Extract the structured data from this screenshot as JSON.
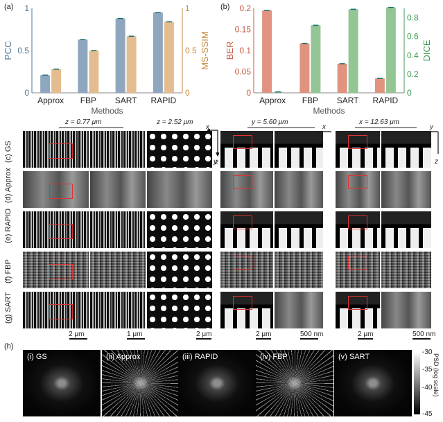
{
  "panels": {
    "a": "(a)",
    "b": "(b)",
    "c": "(c)",
    "d": "(d)",
    "e": "(e)",
    "f": "(f)",
    "g": "(g)",
    "h": "(h)"
  },
  "chart_data": [
    {
      "type": "bar",
      "categories": [
        "Approx",
        "FBP",
        "SART",
        "RAPID"
      ],
      "xlabel": "Methods",
      "ylabel": "PCC",
      "y2label": "MS-SSIM",
      "ylim": [
        0,
        1
      ],
      "y2lim": [
        0,
        1
      ],
      "yticks": [
        "0",
        "0.5",
        "1"
      ],
      "y2ticks": [
        "0",
        "0.5",
        "1"
      ],
      "series": [
        {
          "name": "PCC",
          "axis": "left",
          "color": "#8fa6bf",
          "values": [
            0.21,
            0.63,
            0.88,
            0.95
          ]
        },
        {
          "name": "MS-SSIM",
          "axis": "right",
          "color": "#e3bd8f",
          "values": [
            0.28,
            0.5,
            0.67,
            0.84
          ]
        }
      ]
    },
    {
      "type": "bar",
      "categories": [
        "Approx",
        "FBP",
        "SART",
        "RAPID"
      ],
      "xlabel": "Methods",
      "ylabel": "BER",
      "y2label": "DICE",
      "ylim": [
        0,
        0.2
      ],
      "y2lim": [
        0,
        0.9
      ],
      "yticks": [
        "0",
        "0.05",
        "0.1",
        "0.15",
        "0.2"
      ],
      "y2ticks": [
        "0",
        "0.2",
        "0.4",
        "0.6",
        "0.8"
      ],
      "series": [
        {
          "name": "BER",
          "axis": "left",
          "color": "#e1937f",
          "values": [
            0.195,
            0.117,
            0.069,
            0.034
          ]
        },
        {
          "name": "DICE",
          "axis": "right",
          "color": "#93c595",
          "values": [
            0.01,
            0.72,
            0.89,
            0.91
          ]
        }
      ]
    }
  ],
  "slices": {
    "z1": "z = 0.77 μm",
    "z2": "z = 2.52 μm",
    "y1": "y = 5.60 μm",
    "x1": "x = 12.63 μm"
  },
  "axes_glyphs": {
    "a1h": "x",
    "a1v": "y",
    "a2h": "x",
    "a2v": "z",
    "a3h": "y",
    "a3v": "z"
  },
  "rows": [
    "GS",
    "Approx",
    "RAPID",
    "FBP",
    "SART"
  ],
  "scalebars": {
    "s1": "2 μm",
    "s2": "1 μm",
    "s3": "2 μm",
    "s4": "2 μm",
    "s5": "500 nm",
    "s6": "2 μm",
    "s7": "500 nm"
  },
  "psd": {
    "labels": [
      "(i) GS",
      "(ii) Approx",
      "(iii) RAPID",
      "(iv) FBP",
      "(v) SART"
    ],
    "colorbar_title": "PSD (log scale)",
    "colorbar_ticks": [
      "-30",
      "-35",
      "-40",
      "-45"
    ]
  }
}
